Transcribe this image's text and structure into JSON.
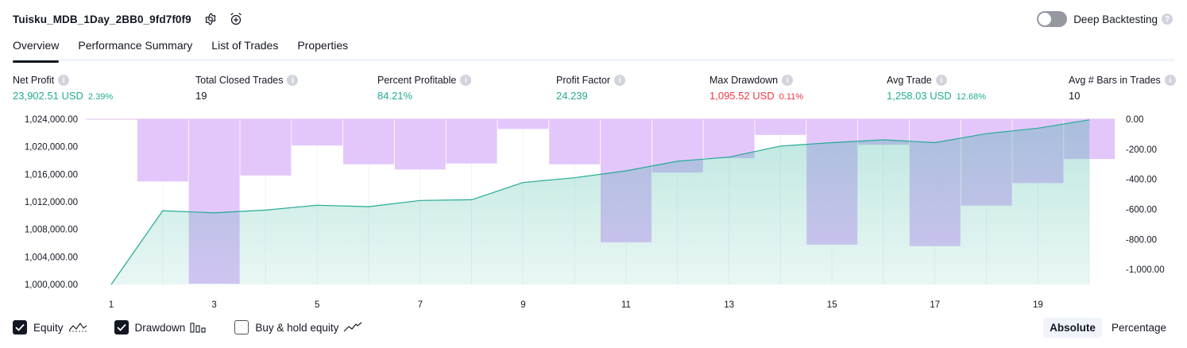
{
  "header": {
    "strategy_name": "Tuisku_MDB_1Day_2BB0_9fd7f0f9",
    "deep_backtesting_label": "Deep Backtesting",
    "deep_backtesting_enabled": false
  },
  "tabs": [
    {
      "label": "Overview",
      "active": true
    },
    {
      "label": "Performance Summary",
      "active": false
    },
    {
      "label": "List of Trades",
      "active": false
    },
    {
      "label": "Properties",
      "active": false
    }
  ],
  "metrics": [
    {
      "label": "Net Profit",
      "value": "23,902.51 USD",
      "pct": "2.39%",
      "color": "#22ab94"
    },
    {
      "label": "Total Closed Trades",
      "value": "19",
      "pct": "",
      "color": "#131722"
    },
    {
      "label": "Percent Profitable",
      "value": "84.21%",
      "pct": "",
      "color": "#22ab94"
    },
    {
      "label": "Profit Factor",
      "value": "24.239",
      "pct": "",
      "color": "#22ab94"
    },
    {
      "label": "Max Drawdown",
      "value": "1,095.52 USD",
      "pct": "0.11%",
      "color": "#f23645"
    },
    {
      "label": "Avg Trade",
      "value": "1,258.03 USD",
      "pct": "12.68%",
      "color": "#22ab94"
    },
    {
      "label": "Avg # Bars in Trades",
      "value": "10",
      "pct": "",
      "color": "#131722"
    }
  ],
  "chart_data": {
    "type": "area",
    "x": [
      1,
      2,
      3,
      4,
      5,
      6,
      7,
      8,
      9,
      10,
      11,
      12,
      13,
      14,
      15,
      16,
      17,
      18,
      19,
      20
    ],
    "x_tick_labels": [
      "1",
      "3",
      "5",
      "7",
      "9",
      "11",
      "13",
      "15",
      "17",
      "19"
    ],
    "left_axis": {
      "ylim": [
        1000000,
        1024000
      ],
      "tick_labels": [
        "1,024,000.00",
        "1,020,000.00",
        "1,016,000.00",
        "1,012,000.00",
        "1,008,000.00",
        "1,004,000.00",
        "1,000,000.00"
      ]
    },
    "right_axis": {
      "ylim": [
        -1100,
        0
      ],
      "tick_labels": [
        "0.00",
        "-200.00",
        "-400.00",
        "-600.00",
        "-800.00",
        "-1,000.00"
      ]
    },
    "series": [
      {
        "name": "Equity",
        "type": "area",
        "axis": "left",
        "color": "#22ab94",
        "values": [
          1000000,
          1010700,
          1010400,
          1010800,
          1011500,
          1011300,
          1012200,
          1012300,
          1014800,
          1015500,
          1016500,
          1017900,
          1018500,
          1020100,
          1020600,
          1021000,
          1020600,
          1021900,
          1022700,
          1023902.51
        ]
      },
      {
        "name": "Drawdown",
        "type": "bar",
        "axis": "right",
        "color": "#ce93d8",
        "values": [
          0,
          -415,
          -1095.52,
          -375,
          -175,
          -300,
          -335,
          -295,
          -65,
          -300,
          -820,
          -355,
          -260,
          -105,
          -835,
          -170,
          -845,
          -575,
          -425,
          -265
        ]
      }
    ],
    "grid": true
  },
  "legend": {
    "equity": {
      "label": "Equity",
      "checked": true
    },
    "drawdown": {
      "label": "Drawdown",
      "checked": true
    },
    "buy_hold": {
      "label": "Buy & hold equity",
      "checked": false
    }
  },
  "modes": [
    {
      "label": "Absolute",
      "active": true
    },
    {
      "label": "Percentage",
      "active": false
    }
  ]
}
